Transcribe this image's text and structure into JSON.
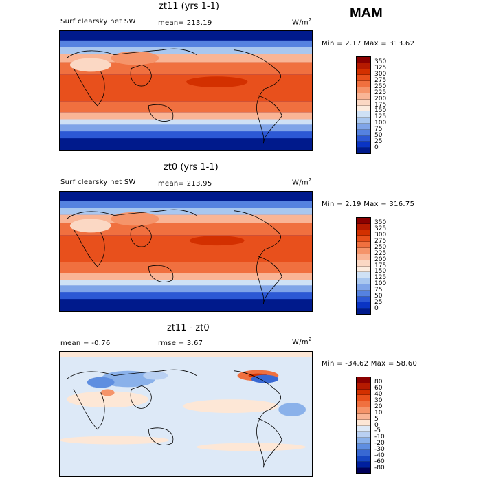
{
  "season": "MAM",
  "panels": [
    {
      "title": "zt11 (yrs 1-1)",
      "left_label": "Surf clearsky net SW",
      "stat_label": "mean= 213.19",
      "units": "W/m",
      "units_sup": "2",
      "minmax": "Min =   2.17 Max = 313.62",
      "colorbar_labels": [
        "350",
        "325",
        "300",
        "275",
        "250",
        "225",
        "200",
        "175",
        "150",
        "125",
        "100",
        "75",
        "50",
        "25",
        "0"
      ]
    },
    {
      "title": "zt0 (yrs 1-1)",
      "left_label": "Surf clearsky net SW",
      "stat_label": "mean= 213.95",
      "units": "W/m",
      "units_sup": "2",
      "minmax": "Min =   2.19 Max = 316.75",
      "colorbar_labels": [
        "350",
        "325",
        "300",
        "275",
        "250",
        "225",
        "200",
        "175",
        "150",
        "125",
        "100",
        "75",
        "50",
        "25",
        "0"
      ]
    },
    {
      "title": "zt11 - zt0",
      "left_label": "mean =  -0.76",
      "stat_label": "rmse =   3.67",
      "units": "W/m",
      "units_sup": "2",
      "minmax": "Min = -34.62 Max =  58.60",
      "colorbar_labels": [
        "80",
        "60",
        "40",
        "30",
        "20",
        "10",
        "5",
        "0",
        "-5",
        "-10",
        "-20",
        "-30",
        "-40",
        "-60",
        "-80"
      ]
    }
  ],
  "colors": {
    "abs_scale": [
      "#8b0000",
      "#b51a00",
      "#d33000",
      "#e8501c",
      "#f0703f",
      "#f5946a",
      "#f9b596",
      "#fbd8c4",
      "#fcecdf",
      "#cfe1f5",
      "#a9c7ef",
      "#7fa4e8",
      "#5582e0",
      "#2c58d4",
      "#0a34c4",
      "#001a8c"
    ],
    "diff_scale": [
      "#8b0000",
      "#b51a00",
      "#d33000",
      "#e8501c",
      "#f0703f",
      "#f5946a",
      "#f9b596",
      "#fde7d6",
      "#dde9f7",
      "#b9d0f2",
      "#8ab1ea",
      "#5f8ee0",
      "#3868d3",
      "#1646c2",
      "#001f9e",
      "#00005a"
    ],
    "land_outline": "#000000"
  }
}
